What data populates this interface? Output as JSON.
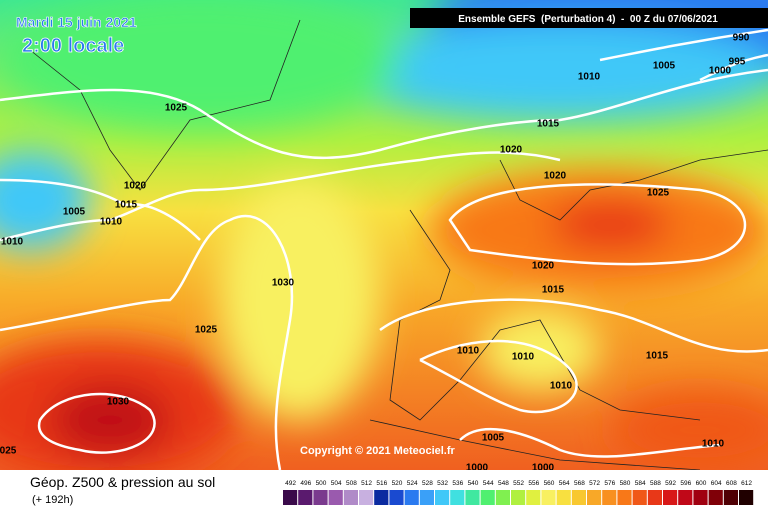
{
  "header": {
    "date": "Mardi 15 juin 2021",
    "time": "2:00 locale",
    "run": "Ensemble GEFS  (Perturbation 4)  -  00 Z du 07/06/2021",
    "copyright": "Copyright © 2021 Meteociel.fr"
  },
  "footer": {
    "title": "Géop. Z500 & pression au sol",
    "lead": "(+ 192h)"
  },
  "scale": {
    "values": [
      492,
      496,
      500,
      504,
      508,
      512,
      516,
      520,
      524,
      528,
      532,
      536,
      540,
      544,
      548,
      552,
      556,
      560,
      564,
      568,
      572,
      576,
      580,
      584,
      588,
      592,
      596,
      600,
      604,
      608,
      612
    ],
    "colors": [
      "#3a0a4a",
      "#5a1a6e",
      "#7a3a8e",
      "#9a5aae",
      "#b08ac8",
      "#c8b0e0",
      "#0a2aa0",
      "#1a4ad0",
      "#2a7af0",
      "#3aa0f8",
      "#40c8f8",
      "#40e0e0",
      "#40e8a0",
      "#50f070",
      "#80f050",
      "#b0f040",
      "#e0f040",
      "#f8f060",
      "#f8e040",
      "#f8c830",
      "#f8a828",
      "#f89020",
      "#f87818",
      "#f05818",
      "#e83818",
      "#d81818",
      "#c00818",
      "#a00010",
      "#800008",
      "#500004",
      "#200000"
    ]
  },
  "isobars": [
    "1025",
    "1020",
    "1015",
    "1010",
    "1005",
    "1010",
    "1030",
    "1025",
    "1030",
    "025",
    "1010",
    "1005",
    "1000",
    "995",
    "990",
    "1015",
    "1020",
    "1020",
    "1025",
    "1020",
    "1015",
    "1010",
    "1010",
    "1010",
    "1015",
    "1005",
    "1000",
    "1000",
    "1010"
  ]
}
